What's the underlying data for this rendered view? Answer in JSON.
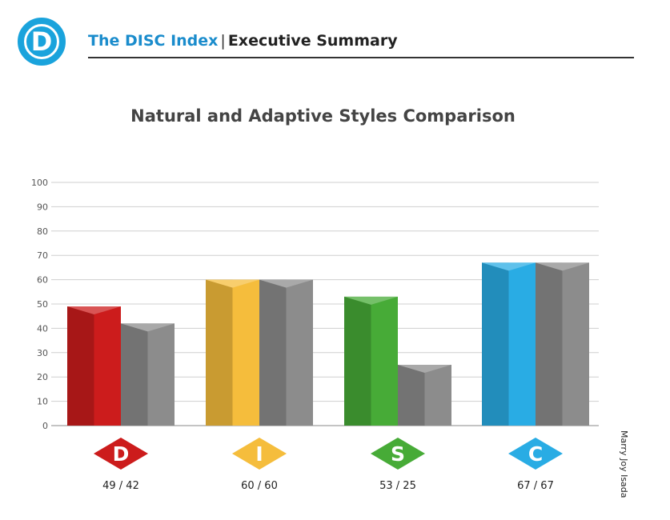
{
  "header": {
    "logo_letter": "D",
    "brand": "The DISC Index",
    "separator": "|",
    "section": "Executive Summary"
  },
  "side_label": "Marry Joy Isada",
  "chart_data": {
    "type": "bar",
    "title": "Natural and Adaptive Styles Comparison",
    "ylim": [
      0,
      100
    ],
    "yticks": [
      0,
      10,
      20,
      30,
      40,
      50,
      60,
      70,
      80,
      90,
      100
    ],
    "grid": true,
    "categories": [
      "D",
      "I",
      "S",
      "C"
    ],
    "series": [
      {
        "values": [
          49,
          60,
          53,
          67
        ]
      },
      {
        "values": [
          42,
          60,
          25,
          67
        ]
      }
    ],
    "category_labels": [
      "49 / 42",
      "60 / 60",
      "53 / 25",
      "67 / 67"
    ],
    "colors": {
      "D": "#cc1c1c",
      "I": "#f5bd3c",
      "S": "#47ab37",
      "C": "#29ace4",
      "adaptive": "#8c8c8c"
    }
  }
}
